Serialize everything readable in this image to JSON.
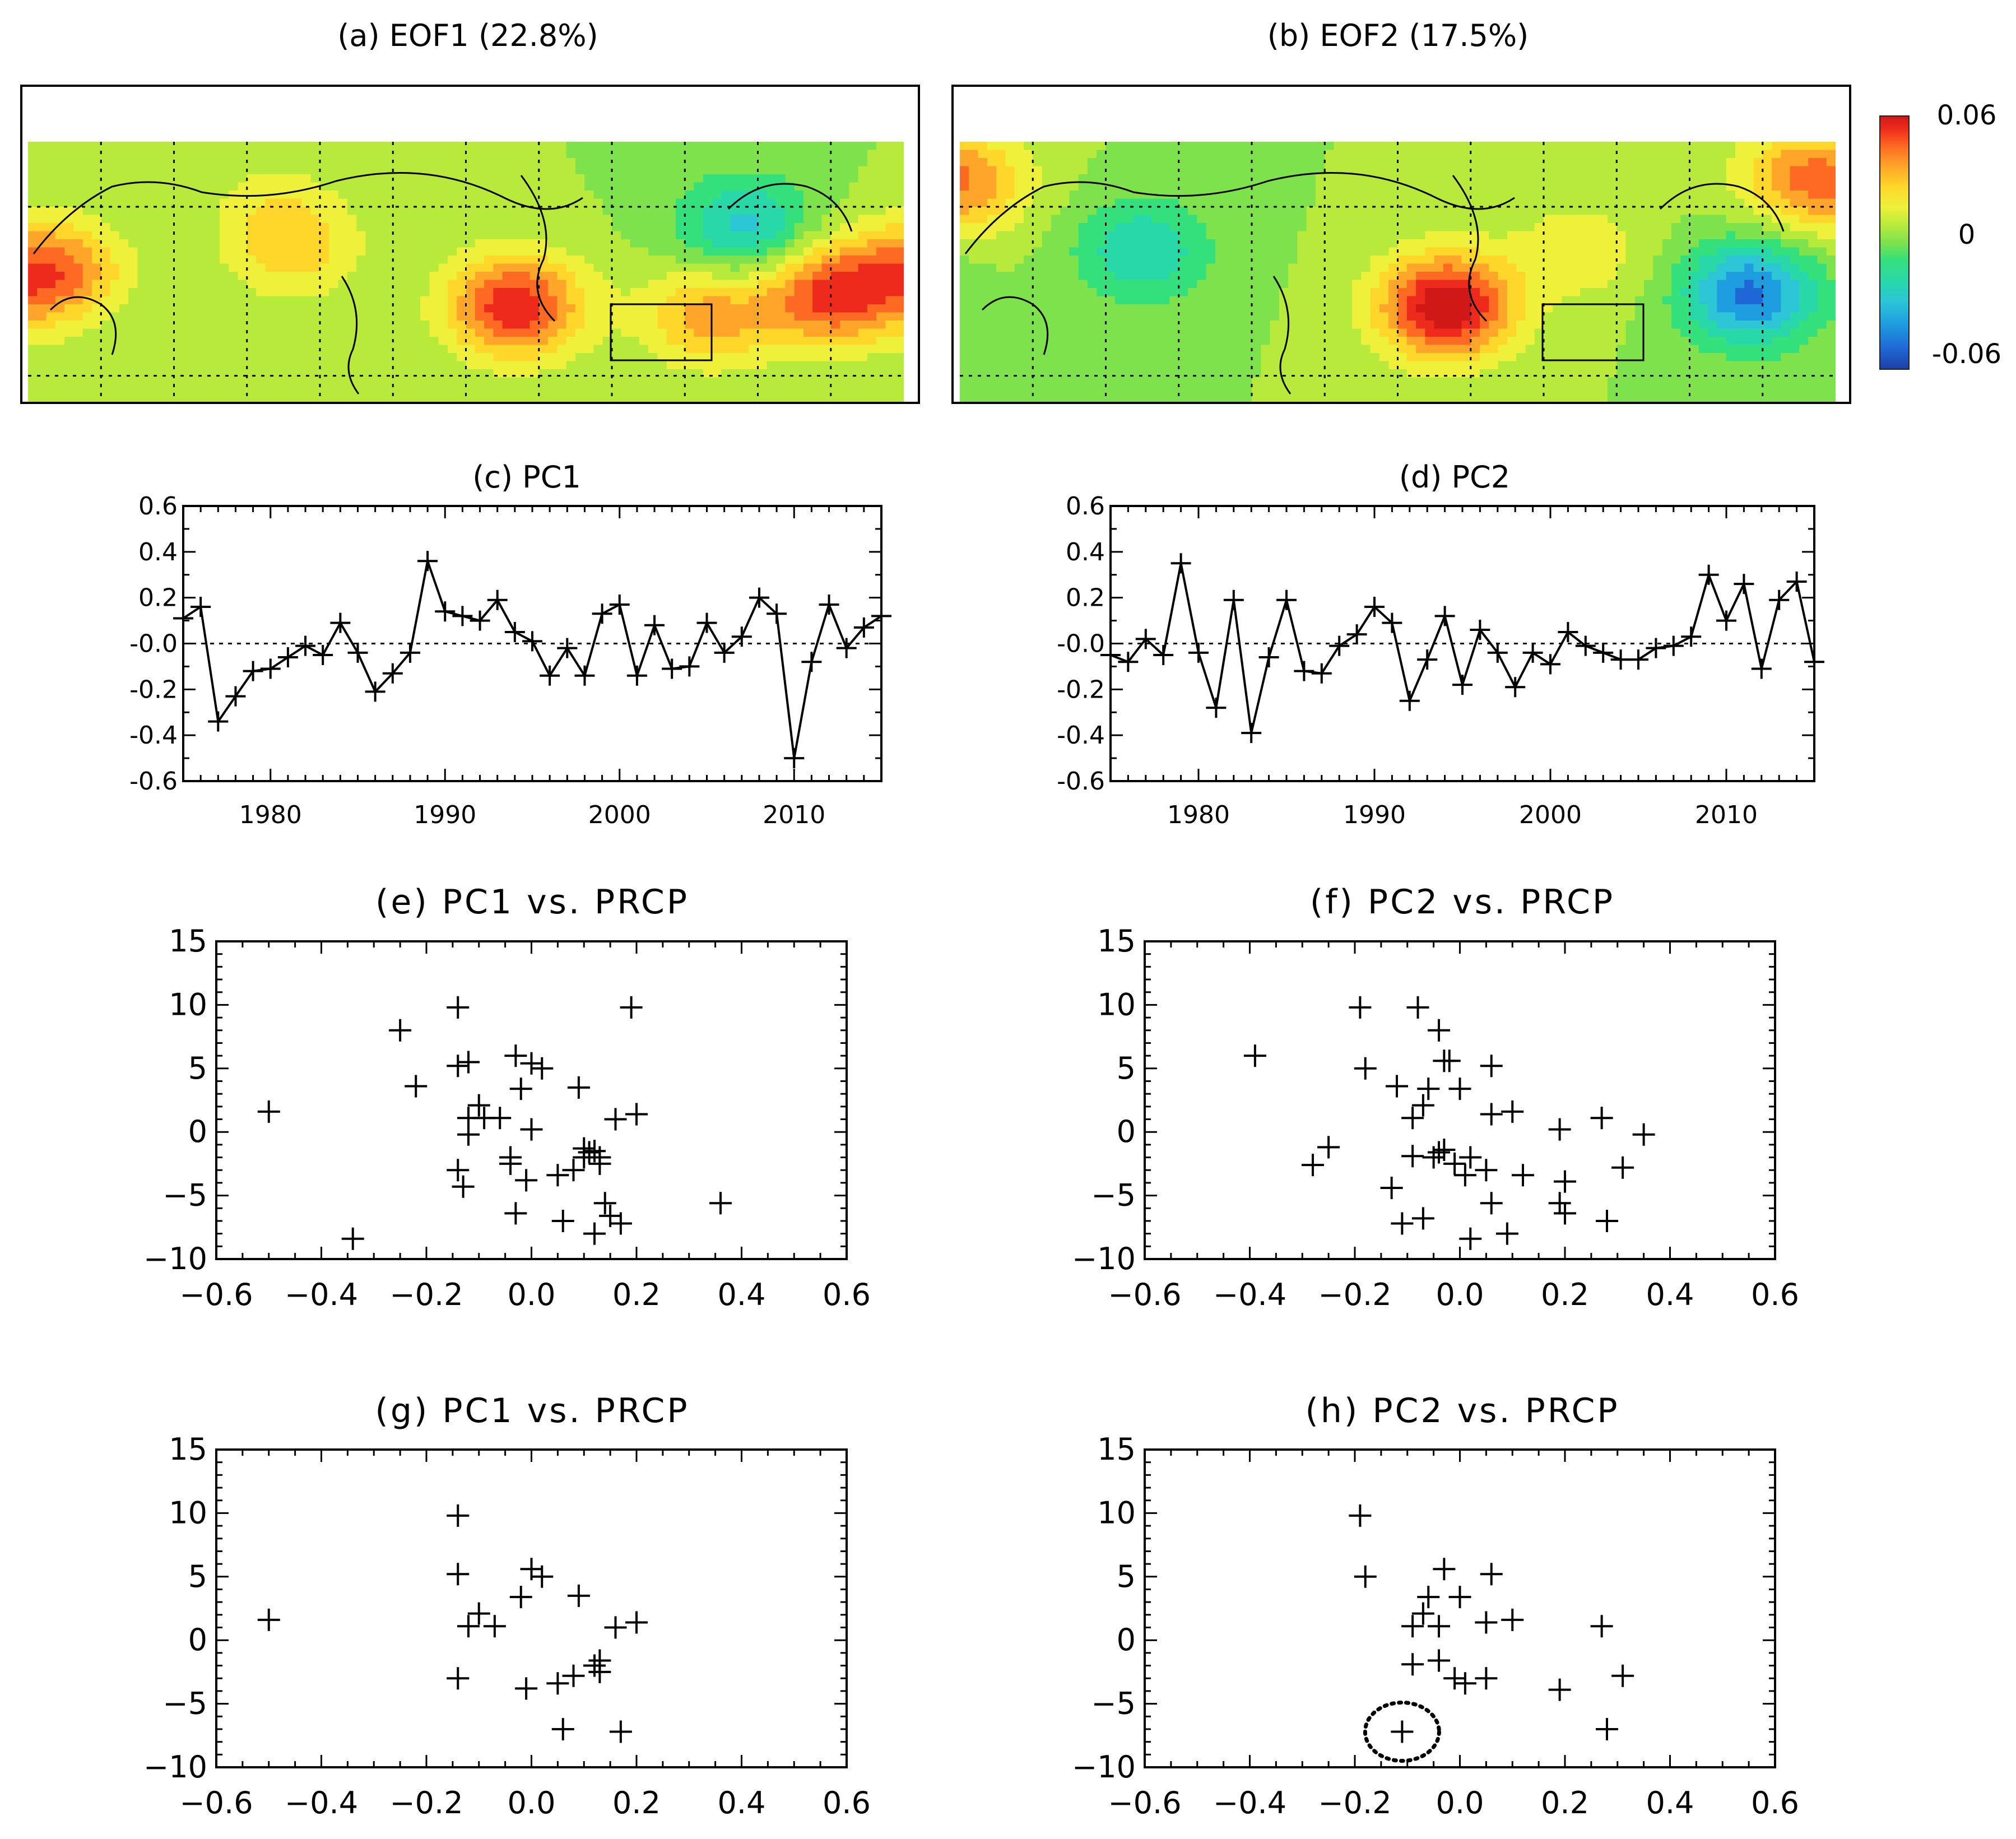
{
  "colors": {
    "colorbar": [
      "#1c3fa6",
      "#1f67d6",
      "#1e9ee0",
      "#2cc6d6",
      "#28d8a8",
      "#34e07c",
      "#7ee24c",
      "#b8ea3c",
      "#eef03a",
      "#ffd72a",
      "#ffa62a",
      "#ff6a22",
      "#ee2a1c",
      "#d01818"
    ],
    "land": "#000000"
  },
  "chart_data": [
    {
      "id": "a",
      "type": "heatmap",
      "title": "(a) EOF1 (22.8%)",
      "description_field": "EOF1 spatial pattern",
      "anomaly_centers": [
        {
          "lon": 200,
          "lat": 42,
          "value": 0.05
        },
        {
          "lon": 330,
          "lat": 45,
          "value": 0.045
        },
        {
          "lon": 10,
          "lat": 50,
          "value": 0.04
        },
        {
          "lon": 280,
          "lat": 40,
          "value": 0.03
        },
        {
          "lon": 295,
          "lat": 60,
          "value": -0.03
        },
        {
          "lon": 110,
          "lat": 55,
          "value": 0.02
        },
        {
          "lon": 100,
          "lat": 65,
          "value": 0.01
        }
      ]
    },
    {
      "id": "b",
      "type": "heatmap",
      "title": "(b) EOF2 (17.5%)",
      "description_field": "EOF2 spatial pattern",
      "anomaly_centers": [
        {
          "lon": 200,
          "lat": 42,
          "value": 0.06
        },
        {
          "lon": 325,
          "lat": 45,
          "value": -0.045
        },
        {
          "lon": 75,
          "lat": 55,
          "value": -0.025
        },
        {
          "lon": 345,
          "lat": 72,
          "value": 0.025
        },
        {
          "lon": 5,
          "lat": 70,
          "value": 0.02
        },
        {
          "lon": 255,
          "lat": 55,
          "value": 0.015
        }
      ]
    },
    {
      "id": "colorbar",
      "type": "heatmap",
      "legend_labels": [
        "0.06",
        "0",
        "-0.06"
      ],
      "range": [
        -0.06,
        0.06
      ]
    },
    {
      "id": "c",
      "type": "line",
      "title": "(c) PC1",
      "x": [
        1975,
        1976,
        1977,
        1978,
        1979,
        1980,
        1981,
        1982,
        1983,
        1984,
        1985,
        1986,
        1987,
        1988,
        1989,
        1990,
        1991,
        1992,
        1993,
        1994,
        1995,
        1996,
        1997,
        1998,
        1999,
        2000,
        2001,
        2002,
        2003,
        2004,
        2005,
        2006,
        2007,
        2008,
        2009,
        2010,
        2011,
        2012,
        2013,
        2014,
        2015
      ],
      "values": [
        0.11,
        0.16,
        -0.34,
        -0.23,
        -0.12,
        -0.11,
        -0.06,
        -0.01,
        -0.05,
        0.09,
        -0.04,
        -0.21,
        -0.13,
        -0.04,
        0.36,
        0.14,
        0.12,
        0.1,
        0.19,
        0.05,
        0.01,
        -0.14,
        -0.02,
        -0.14,
        0.13,
        0.17,
        -0.14,
        0.08,
        -0.11,
        -0.1,
        0.09,
        -0.04,
        0.03,
        0.2,
        0.13,
        -0.5,
        -0.08,
        0.17,
        -0.02,
        0.07,
        0.12
      ],
      "xticks": [
        "1980",
        "1990",
        "2000",
        "2010"
      ],
      "yticks": [
        "0.6",
        "0.4",
        "0.2",
        "-0.0",
        "-0.2",
        "-0.4",
        "-0.6"
      ],
      "xlim": [
        1975,
        2015
      ],
      "ylim": [
        -0.6,
        0.6
      ]
    },
    {
      "id": "d",
      "type": "line",
      "title": "(d) PC2",
      "x": [
        1975,
        1976,
        1977,
        1978,
        1979,
        1980,
        1981,
        1982,
        1983,
        1984,
        1985,
        1986,
        1987,
        1988,
        1989,
        1990,
        1991,
        1992,
        1993,
        1994,
        1995,
        1996,
        1997,
        1998,
        1999,
        2000,
        2001,
        2002,
        2003,
        2004,
        2005,
        2006,
        2007,
        2008,
        2009,
        2010,
        2011,
        2012,
        2013,
        2014,
        2015
      ],
      "values": [
        -0.05,
        -0.08,
        0.02,
        -0.05,
        0.35,
        -0.04,
        -0.28,
        0.19,
        -0.39,
        -0.06,
        0.19,
        -0.12,
        -0.13,
        -0.01,
        0.04,
        0.16,
        0.09,
        -0.25,
        -0.07,
        0.12,
        -0.18,
        0.06,
        -0.04,
        -0.19,
        -0.04,
        -0.09,
        0.05,
        -0.01,
        -0.04,
        -0.07,
        -0.07,
        -0.02,
        -0.01,
        0.03,
        0.3,
        0.1,
        0.26,
        -0.11,
        0.19,
        0.27,
        -0.08
      ],
      "xticks": [
        "1980",
        "1990",
        "2000",
        "2010"
      ],
      "yticks": [
        "0.6",
        "0.4",
        "0.2",
        "-0.0",
        "-0.2",
        "-0.4",
        "-0.6"
      ],
      "xlim": [
        1975,
        2015
      ],
      "ylim": [
        -0.6,
        0.6
      ]
    },
    {
      "id": "e",
      "type": "scatter",
      "title": "(e) PC1 vs. PRCP",
      "points": [
        [
          -0.5,
          1.6
        ],
        [
          -0.34,
          -8.4
        ],
        [
          -0.25,
          8.0
        ],
        [
          -0.22,
          3.6
        ],
        [
          -0.14,
          9.8
        ],
        [
          -0.14,
          5.2
        ],
        [
          -0.12,
          5.5
        ],
        [
          -0.14,
          -3.0
        ],
        [
          -0.13,
          -4.3
        ],
        [
          -0.12,
          1.1
        ],
        [
          -0.12,
          -0.2
        ],
        [
          -0.1,
          2.1
        ],
        [
          -0.09,
          1.1
        ],
        [
          -0.06,
          1.1
        ],
        [
          -0.04,
          -2.5
        ],
        [
          -0.04,
          -2.0
        ],
        [
          -0.03,
          6.0
        ],
        [
          -0.02,
          3.4
        ],
        [
          -0.03,
          -6.4
        ],
        [
          -0.01,
          -3.8
        ],
        [
          0.0,
          0.2
        ],
        [
          0.0,
          5.4
        ],
        [
          0.02,
          5.0
        ],
        [
          0.05,
          -3.4
        ],
        [
          0.06,
          -7.0
        ],
        [
          0.08,
          -3.0
        ],
        [
          0.09,
          3.5
        ],
        [
          0.1,
          -2.0
        ],
        [
          0.1,
          -1.3
        ],
        [
          0.11,
          -1.6
        ],
        [
          0.12,
          -8.0
        ],
        [
          0.12,
          -1.5
        ],
        [
          0.13,
          -2.5
        ],
        [
          0.13,
          -2.0
        ],
        [
          0.14,
          -5.6
        ],
        [
          0.15,
          -6.6
        ],
        [
          0.16,
          1.0
        ],
        [
          0.17,
          -7.2
        ],
        [
          0.19,
          9.8
        ],
        [
          0.2,
          1.4
        ],
        [
          0.36,
          -5.6
        ]
      ],
      "xticks": [
        "−0.6",
        "−0.4",
        "−0.2",
        "0.0",
        "0.2",
        "0.4",
        "0.6"
      ],
      "yticks": [
        "15",
        "10",
        "5",
        "0",
        "−5",
        "−10"
      ],
      "xlim": [
        -0.6,
        0.6
      ],
      "ylim": [
        -10,
        15
      ]
    },
    {
      "id": "f",
      "type": "scatter",
      "title": "(f) PC2 vs. PRCP",
      "points": [
        [
          -0.39,
          6.0
        ],
        [
          -0.28,
          -2.6
        ],
        [
          -0.25,
          -1.2
        ],
        [
          -0.19,
          9.8
        ],
        [
          -0.18,
          5.0
        ],
        [
          -0.13,
          -4.4
        ],
        [
          -0.12,
          3.6
        ],
        [
          -0.11,
          -7.2
        ],
        [
          -0.09,
          1.1
        ],
        [
          -0.09,
          -1.9
        ],
        [
          -0.08,
          9.8
        ],
        [
          -0.07,
          2.1
        ],
        [
          -0.07,
          -6.8
        ],
        [
          -0.06,
          3.4
        ],
        [
          -0.05,
          -2.0
        ],
        [
          -0.04,
          8.0
        ],
        [
          -0.04,
          -1.6
        ],
        [
          -0.03,
          5.6
        ],
        [
          -0.03,
          -1.4
        ],
        [
          -0.02,
          5.6
        ],
        [
          -0.01,
          -2.5
        ],
        [
          0.0,
          3.4
        ],
        [
          0.01,
          -3.4
        ],
        [
          0.02,
          -2.0
        ],
        [
          0.02,
          -8.4
        ],
        [
          0.05,
          -3.0
        ],
        [
          0.06,
          -5.6
        ],
        [
          0.06,
          5.2
        ],
        [
          0.06,
          1.4
        ],
        [
          0.09,
          -8.0
        ],
        [
          0.1,
          1.6
        ],
        [
          0.12,
          -3.4
        ],
        [
          0.19,
          0.2
        ],
        [
          0.19,
          -5.6
        ],
        [
          0.2,
          -6.4
        ],
        [
          0.2,
          -3.9
        ],
        [
          0.27,
          1.1
        ],
        [
          0.28,
          -7.0
        ],
        [
          0.31,
          -2.8
        ],
        [
          0.35,
          -0.2
        ]
      ],
      "xticks": [
        "−0.6",
        "−0.4",
        "−0.2",
        "0.0",
        "0.2",
        "0.4",
        "0.6"
      ],
      "yticks": [
        "15",
        "10",
        "5",
        "0",
        "−5",
        "−10"
      ],
      "xlim": [
        -0.6,
        0.6
      ],
      "ylim": [
        -10,
        15
      ]
    },
    {
      "id": "g",
      "type": "scatter",
      "title": "(g) PC1 vs. PRCP",
      "points": [
        [
          -0.5,
          1.6
        ],
        [
          -0.14,
          9.8
        ],
        [
          -0.14,
          5.2
        ],
        [
          -0.14,
          -3.0
        ],
        [
          -0.12,
          1.1
        ],
        [
          -0.1,
          2.1
        ],
        [
          -0.07,
          1.1
        ],
        [
          -0.02,
          3.4
        ],
        [
          -0.01,
          -3.8
        ],
        [
          0.0,
          5.6
        ],
        [
          0.02,
          5.0
        ],
        [
          0.05,
          -3.4
        ],
        [
          0.06,
          -7.0
        ],
        [
          0.08,
          -2.8
        ],
        [
          0.09,
          3.5
        ],
        [
          0.12,
          -2.0
        ],
        [
          0.13,
          -1.6
        ],
        [
          0.13,
          -2.5
        ],
        [
          0.16,
          1.0
        ],
        [
          0.17,
          -7.2
        ],
        [
          0.2,
          1.4
        ]
      ],
      "xticks": [
        "−0.6",
        "−0.4",
        "−0.2",
        "0.0",
        "0.2",
        "0.4",
        "0.6"
      ],
      "yticks": [
        "15",
        "10",
        "5",
        "0",
        "−5",
        "−10"
      ],
      "xlim": [
        -0.6,
        0.6
      ],
      "ylim": [
        -10,
        15
      ]
    },
    {
      "id": "h",
      "type": "scatter",
      "title": "(h) PC2 vs. PRCP",
      "points": [
        [
          -0.19,
          9.8
        ],
        [
          -0.18,
          5.0
        ],
        [
          -0.11,
          -7.2
        ],
        [
          -0.09,
          1.1
        ],
        [
          -0.09,
          -1.9
        ],
        [
          -0.07,
          2.1
        ],
        [
          -0.06,
          3.4
        ],
        [
          -0.04,
          -1.6
        ],
        [
          -0.04,
          1.1
        ],
        [
          -0.03,
          5.6
        ],
        [
          -0.01,
          -3.0
        ],
        [
          0.0,
          3.4
        ],
        [
          0.01,
          -3.4
        ],
        [
          0.05,
          -3.0
        ],
        [
          0.05,
          1.4
        ],
        [
          0.06,
          5.2
        ],
        [
          0.1,
          1.6
        ],
        [
          0.19,
          -3.9
        ],
        [
          0.27,
          1.1
        ],
        [
          0.28,
          -7.0
        ],
        [
          0.31,
          -2.8
        ]
      ],
      "highlight": [
        -0.11,
        -7.2
      ],
      "xticks": [
        "−0.6",
        "−0.4",
        "−0.2",
        "0.0",
        "0.2",
        "0.4",
        "0.6"
      ],
      "yticks": [
        "15",
        "10",
        "5",
        "0",
        "−5",
        "−10"
      ],
      "xlim": [
        -0.6,
        0.6
      ],
      "ylim": [
        -10,
        15
      ]
    }
  ]
}
